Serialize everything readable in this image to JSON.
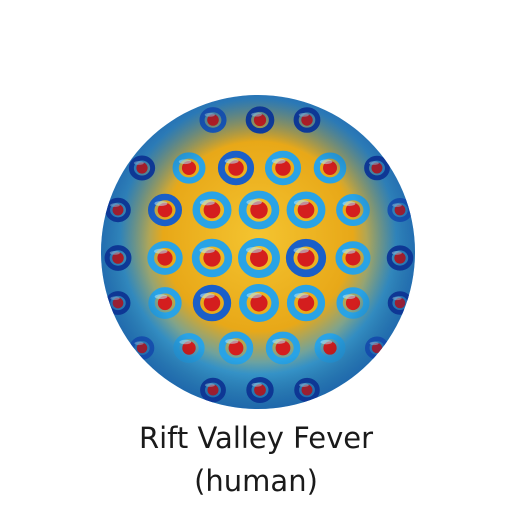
{
  "image": {
    "subject": "virus-particle-surface-render",
    "colors": {
      "background": "#ffffff",
      "shell_gold": "#e8b818",
      "shell_orange": "#f0a020",
      "ring_cyan": "#29a3e6",
      "ring_blue": "#1a5fc8",
      "ring_dark_blue": "#1040a8",
      "core_red": "#d41e1e"
    }
  },
  "caption": {
    "line1": "Rift Valley Fever",
    "line2": "(human)"
  }
}
